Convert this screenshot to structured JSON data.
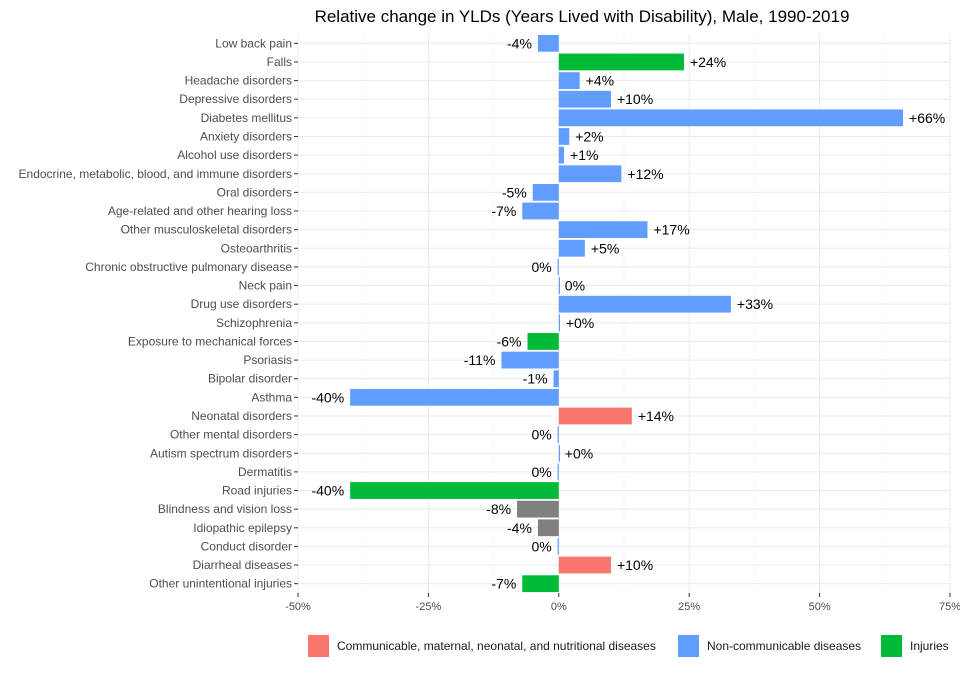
{
  "chart_data": {
    "type": "bar",
    "orientation": "horizontal",
    "title": "Relative change in YLDs (Years Lived with Disability), Male, 1990-2019",
    "xlim": [
      -50,
      75
    ],
    "x_ticks": [
      -50,
      -25,
      0,
      25,
      50,
      75
    ],
    "x_tick_labels": [
      "-50%",
      "-25%",
      "0%",
      "25%",
      "50%",
      "75%"
    ],
    "grid": true,
    "legend_position": "bottom",
    "groups": [
      {
        "name": "Communicable, maternal, neonatal, and nutritional diseases",
        "color": "#F8766D"
      },
      {
        "name": "Non-communicable diseases",
        "color": "#619CFF"
      },
      {
        "name": "Injuries",
        "color": "#00BA38"
      }
    ],
    "other_color": "#808080",
    "categories": [
      "Low back pain",
      "Falls",
      "Headache disorders",
      "Depressive disorders",
      "Diabetes mellitus",
      "Anxiety disorders",
      "Alcohol use disorders",
      "Endocrine, metabolic, blood, and immune disorders",
      "Oral disorders",
      "Age-related and other hearing loss",
      "Other musculoskeletal disorders",
      "Osteoarthritis",
      "Chronic obstructive pulmonary disease",
      "Neck pain",
      "Drug use disorders",
      "Schizophrenia",
      "Exposure to mechanical forces",
      "Psoriasis",
      "Bipolar disorder",
      "Asthma",
      "Neonatal disorders",
      "Other mental disorders",
      "Autism spectrum disorders",
      "Dermatitis",
      "Road injuries",
      "Blindness and vision loss",
      "Idiopathic epilepsy",
      "Conduct disorder",
      "Diarrheal diseases",
      "Other unintentional injuries"
    ],
    "values": [
      -4,
      24,
      4,
      10,
      66,
      2,
      1,
      12,
      -5,
      -7,
      17,
      5,
      -0.2,
      0,
      33,
      0.2,
      -6,
      -11,
      -1,
      -40,
      14,
      -0.2,
      0,
      -0.2,
      -40,
      -8,
      -4,
      -0.2,
      10,
      -7
    ],
    "value_labels": [
      "-4%",
      "+24%",
      "+4%",
      "+10%",
      "+66%",
      "+2%",
      "+1%",
      "+12%",
      "-5%",
      "-7%",
      "+17%",
      "+5%",
      "0%",
      "0%",
      "+33%",
      "+0%",
      "-6%",
      "-11%",
      "-1%",
      "-40%",
      "+14%",
      "0%",
      "+0%",
      "0%",
      "-40%",
      "-8%",
      "-4%",
      "0%",
      "+10%",
      "-7%"
    ],
    "bar_groups": [
      "Non-communicable diseases",
      "Injuries",
      "Non-communicable diseases",
      "Non-communicable diseases",
      "Non-communicable diseases",
      "Non-communicable diseases",
      "Non-communicable diseases",
      "Non-communicable diseases",
      "Non-communicable diseases",
      "Non-communicable diseases",
      "Non-communicable diseases",
      "Non-communicable diseases",
      "Non-communicable diseases",
      "Non-communicable diseases",
      "Non-communicable diseases",
      "Non-communicable diseases",
      "Injuries",
      "Non-communicable diseases",
      "Non-communicable diseases",
      "Non-communicable diseases",
      "Communicable, maternal, neonatal, and nutritional diseases",
      "Non-communicable diseases",
      "Non-communicable diseases",
      "Non-communicable diseases",
      "Injuries",
      "Other",
      "Other",
      "Non-communicable diseases",
      "Communicable, maternal, neonatal, and nutritional diseases",
      "Injuries"
    ]
  }
}
